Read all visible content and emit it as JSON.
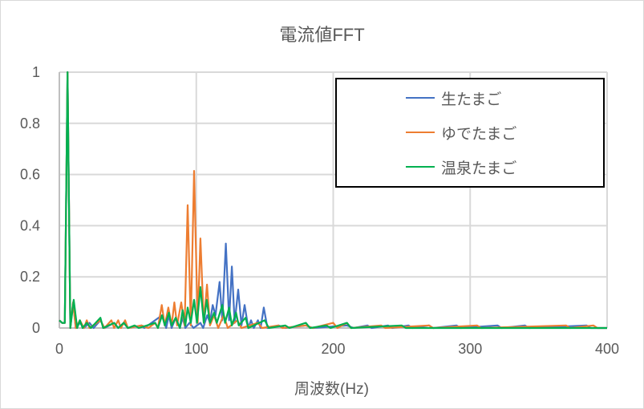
{
  "chart_data": {
    "type": "line",
    "title": "電流値FFT",
    "xlabel": "周波数(Hz)",
    "ylabel": "",
    "xlim": [
      0,
      400
    ],
    "ylim": [
      0,
      1
    ],
    "xticks": [
      "0",
      "100",
      "200",
      "300",
      "400"
    ],
    "yticks": [
      "0",
      "0.2",
      "0.4",
      "0.6",
      "0.8",
      "1"
    ],
    "grid": true,
    "legend_position": "top-right",
    "series": [
      {
        "name": "生たまご",
        "color": "#4472C4",
        "points": [
          [
            0,
            0.03
          ],
          [
            2,
            0.02
          ],
          [
            4,
            0.02
          ],
          [
            6,
            1
          ],
          [
            8,
            0
          ],
          [
            10,
            0.1
          ],
          [
            12,
            0
          ],
          [
            15,
            0.02
          ],
          [
            18,
            0
          ],
          [
            22,
            0.02
          ],
          [
            25,
            0
          ],
          [
            30,
            0.03
          ],
          [
            33,
            0
          ],
          [
            40,
            0.02
          ],
          [
            43,
            0
          ],
          [
            47,
            0.02
          ],
          [
            50,
            0
          ],
          [
            60,
            0.01
          ],
          [
            62,
            0
          ],
          [
            75,
            0.05
          ],
          [
            78,
            0
          ],
          [
            80,
            0.05
          ],
          [
            82,
            0
          ],
          [
            85,
            0.04
          ],
          [
            88,
            0
          ],
          [
            90,
            0.04
          ],
          [
            92,
            0
          ],
          [
            95,
            0.02
          ],
          [
            98,
            0
          ],
          [
            103,
            0.02
          ],
          [
            105,
            0
          ],
          [
            108,
            0.05
          ],
          [
            110,
            0.02
          ],
          [
            112,
            0.09
          ],
          [
            114,
            0.05
          ],
          [
            117,
            0.18
          ],
          [
            119,
            0.03
          ],
          [
            121.6,
            0.33
          ],
          [
            124,
            0.03
          ],
          [
            126,
            0.24
          ],
          [
            128,
            0.02
          ],
          [
            130.6,
            0.15
          ],
          [
            133,
            0.01
          ],
          [
            135.3,
            0.09
          ],
          [
            138,
            0
          ],
          [
            140,
            0.03
          ],
          [
            142,
            0
          ],
          [
            145,
            0.03
          ],
          [
            147,
            0
          ],
          [
            149.3,
            0.08
          ],
          [
            152,
            0
          ],
          [
            160,
            0.01
          ],
          [
            165,
            0
          ],
          [
            180,
            0.01
          ],
          [
            185,
            0
          ],
          [
            210,
            0.01
          ],
          [
            215,
            0
          ],
          [
            225,
            0.01
          ],
          [
            228,
            0
          ],
          [
            240,
            0.01
          ],
          [
            243,
            0
          ],
          [
            255,
            0.01
          ],
          [
            258,
            0
          ],
          [
            270,
            0.01
          ],
          [
            273,
            0
          ],
          [
            290,
            0.01
          ],
          [
            293,
            0
          ],
          [
            320,
            0.01
          ],
          [
            323,
            0
          ],
          [
            340,
            0.01
          ],
          [
            343,
            0
          ],
          [
            385,
            0.01
          ],
          [
            388,
            0
          ],
          [
            400,
            0
          ]
        ]
      },
      {
        "name": "ゆでたまご",
        "color": "#ED7D31",
        "points": [
          [
            0,
            0.03
          ],
          [
            2,
            0.02
          ],
          [
            4,
            0.02
          ],
          [
            6,
            1
          ],
          [
            8,
            0
          ],
          [
            10,
            0.1
          ],
          [
            12,
            0
          ],
          [
            15,
            0.03
          ],
          [
            18,
            0
          ],
          [
            20,
            0.03
          ],
          [
            22,
            0
          ],
          [
            30,
            0.03
          ],
          [
            33,
            0
          ],
          [
            38,
            0.03
          ],
          [
            40,
            0
          ],
          [
            43,
            0.03
          ],
          [
            45,
            0
          ],
          [
            48,
            0.03
          ],
          [
            50,
            0
          ],
          [
            60,
            0.01
          ],
          [
            65,
            0
          ],
          [
            70,
            0.02
          ],
          [
            72,
            0
          ],
          [
            74.8,
            0.09
          ],
          [
            77,
            0.01
          ],
          [
            79.6,
            0.08
          ],
          [
            82,
            0.01
          ],
          [
            84,
            0.1
          ],
          [
            86,
            0.01
          ],
          [
            89,
            0.1
          ],
          [
            91.5,
            0.01
          ],
          [
            93.7,
            0.48
          ],
          [
            96,
            0.01
          ],
          [
            98.4,
            0.614
          ],
          [
            101,
            0.02
          ],
          [
            103,
            0.35
          ],
          [
            105.5,
            0.02
          ],
          [
            107.8,
            0.17
          ],
          [
            110,
            0.01
          ],
          [
            113,
            0.05
          ],
          [
            116,
            0
          ],
          [
            120,
            0.05
          ],
          [
            123,
            0
          ],
          [
            130,
            0.03
          ],
          [
            133,
            0
          ],
          [
            145,
            0.02
          ],
          [
            148,
            0
          ],
          [
            160,
            0.01
          ],
          [
            163,
            0
          ],
          [
            180,
            0.01
          ],
          [
            185,
            0
          ],
          [
            200,
            0.02
          ],
          [
            203,
            0
          ],
          [
            210,
            0.02
          ],
          [
            213,
            0
          ],
          [
            235,
            0.01
          ],
          [
            238,
            0
          ],
          [
            270,
            0.01
          ],
          [
            273,
            0
          ],
          [
            305,
            0.01
          ],
          [
            308,
            0
          ],
          [
            370,
            0.01
          ],
          [
            373,
            0
          ],
          [
            390,
            0.01
          ],
          [
            393,
            0
          ],
          [
            400,
            0
          ]
        ]
      },
      {
        "name": "温泉たまご",
        "color": "#00B050",
        "points": [
          [
            0,
            0.03
          ],
          [
            2,
            0.02
          ],
          [
            4,
            0.02
          ],
          [
            6,
            1
          ],
          [
            8,
            0
          ],
          [
            10.5,
            0.11
          ],
          [
            13,
            0
          ],
          [
            15,
            0.03
          ],
          [
            17,
            0
          ],
          [
            20,
            0.02
          ],
          [
            23,
            0
          ],
          [
            30,
            0.04
          ],
          [
            32,
            0
          ],
          [
            40,
            0.02
          ],
          [
            43,
            0
          ],
          [
            47,
            0.02
          ],
          [
            50,
            0
          ],
          [
            55,
            0.01
          ],
          [
            58,
            0
          ],
          [
            70,
            0.02
          ],
          [
            72,
            0
          ],
          [
            75,
            0.05
          ],
          [
            77,
            0.01
          ],
          [
            80,
            0.06
          ],
          [
            82,
            0.01
          ],
          [
            85,
            0.04
          ],
          [
            88,
            0
          ],
          [
            90,
            0.07
          ],
          [
            92,
            0.01
          ],
          [
            93.7,
            0.08
          ],
          [
            96,
            0.02
          ],
          [
            98.4,
            0.11
          ],
          [
            100.5,
            0.02
          ],
          [
            103,
            0.16
          ],
          [
            105.5,
            0.02
          ],
          [
            107.6,
            0.11
          ],
          [
            110,
            0.02
          ],
          [
            113,
            0.06
          ],
          [
            115,
            0.02
          ],
          [
            119,
            0.09
          ],
          [
            121,
            0.02
          ],
          [
            124,
            0.08
          ],
          [
            126,
            0.01
          ],
          [
            129,
            0.06
          ],
          [
            131,
            0.01
          ],
          [
            136,
            0.04
          ],
          [
            138,
            0
          ],
          [
            150,
            0.03
          ],
          [
            153,
            0
          ],
          [
            165,
            0.01
          ],
          [
            168,
            0
          ],
          [
            180,
            0.02
          ],
          [
            183,
            0
          ],
          [
            195,
            0.01
          ],
          [
            198,
            0
          ],
          [
            210,
            0.02
          ],
          [
            213,
            0
          ],
          [
            250,
            0.01
          ],
          [
            253,
            0
          ],
          [
            400,
            0
          ]
        ]
      }
    ]
  }
}
